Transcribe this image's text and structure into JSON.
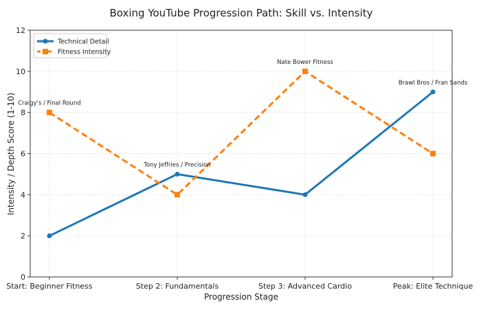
{
  "chart_data": {
    "type": "line",
    "title": "Boxing YouTube Progression Path: Skill vs. Intensity",
    "xlabel": "Progression Stage",
    "ylabel": "Intensity / Depth Score (1-10)",
    "categories": [
      "Start: Beginner Fitness",
      "Step 2: Fundamentals",
      "Step 3: Advanced Cardio",
      "Peak: Elite Technique"
    ],
    "ylim": [
      0,
      12
    ],
    "yticks": [
      0,
      2,
      4,
      6,
      8,
      10,
      12
    ],
    "grid": true,
    "legend_position": "top-left",
    "series": [
      {
        "name": "Technical Detail",
        "values": [
          2,
          5,
          4,
          9
        ],
        "color": "#1f77b4",
        "style": "solid",
        "marker": "circle"
      },
      {
        "name": "Fitness Intensity",
        "values": [
          8,
          4,
          10,
          6
        ],
        "color": "#ff7f0e",
        "style": "dashed",
        "marker": "square"
      }
    ],
    "annotations": [
      {
        "text": "Craigy's / Final Round",
        "category": 0,
        "y": 8
      },
      {
        "text": "Tony Jeffries / Precision",
        "category": 1,
        "y": 5
      },
      {
        "text": "Nate Bower Fitness",
        "category": 2,
        "y": 10
      },
      {
        "text": "Brawl Bros / Fran Sands",
        "category": 3,
        "y": 9
      }
    ]
  }
}
